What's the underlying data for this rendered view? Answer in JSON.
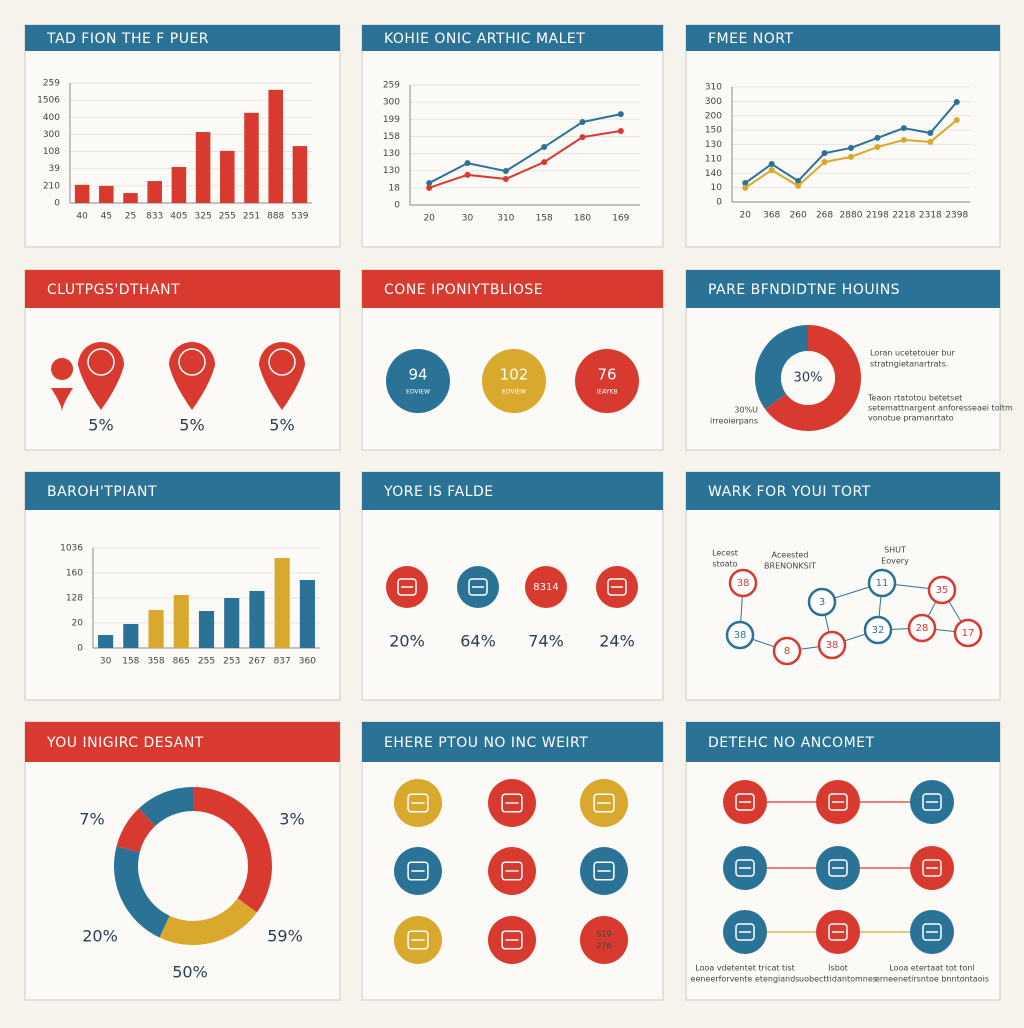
{
  "panels": [
    {
      "title": "TAD FION THE F PUER",
      "type": "bar",
      "header_color": "#2a7396",
      "color": "#d93a2f",
      "categories": [
        "40",
        "45",
        "25",
        "833",
        "405",
        "325",
        "255",
        "251",
        "888",
        "539"
      ],
      "values": [
        53,
        50,
        29,
        64,
        105,
        207,
        152,
        263,
        330,
        166
      ],
      "ylim": [
        0,
        350
      ],
      "yticks": [
        0,
        {
          "value": 50,
          "label": "210"
        },
        {
          "value": 100,
          "label": "39"
        },
        {
          "value": 150,
          "label": "108"
        },
        {
          "value": 200,
          "label": "300"
        },
        {
          "value": 250,
          "label": "400"
        },
        {
          "value": 300,
          "label": "1506"
        },
        {
          "value": 350,
          "label": "259"
        }
      ]
    },
    {
      "title": "KOHIE ONIC ARTHIC MALET",
      "type": "line",
      "header_color": "#2a7396",
      "categories": [
        "20",
        "30",
        "310",
        "158",
        "180",
        "169"
      ],
      "series": [
        {
          "color": "#2a7396",
          "values": [
            64,
            122,
            99,
            169,
            242,
            265
          ]
        },
        {
          "color": "#d93a2f",
          "values": [
            50,
            88,
            76,
            125,
            198,
            216
          ]
        }
      ],
      "ylim": [
        0,
        350
      ],
      "yticks": [
        0,
        {
          "value": 50,
          "label": "18"
        },
        {
          "value": 100,
          "label": "130"
        },
        {
          "value": 150,
          "label": "130"
        },
        {
          "value": 200,
          "label": "158"
        },
        {
          "value": 250,
          "label": "199"
        },
        {
          "value": 300,
          "label": "300"
        },
        {
          "value": 350,
          "label": "259"
        }
      ]
    },
    {
      "title": "FMEE NORT",
      "type": "line",
      "header_color": "#2a7396",
      "categories": [
        "20",
        "368",
        "260",
        "268",
        "2880",
        "2198",
        "2218",
        "2318",
        "2398"
      ],
      "series": [
        {
          "color": "#2a7396",
          "values": [
            66,
            132,
            73,
            170,
            188,
            223,
            257,
            240,
            348
          ]
        },
        {
          "color": "#d9a92e",
          "values": [
            49,
            111,
            56,
            139,
            157,
            191,
            216,
            209,
            285
          ]
        }
      ],
      "ylim": [
        0,
        400
      ],
      "yticks": [
        0,
        {
          "value": 50,
          "label": "10"
        },
        {
          "value": 100,
          "label": "140"
        },
        {
          "value": 150,
          "label": "110"
        },
        {
          "value": 200,
          "label": "130"
        },
        {
          "value": 250,
          "label": "150"
        },
        {
          "value": 300,
          "label": "200"
        },
        {
          "value": 350,
          "label": "300"
        },
        {
          "value": 400,
          "label": "310"
        }
      ]
    },
    {
      "title": "CLUTPGS'DTHANT",
      "type": "pins",
      "header_color": "#d93a2f",
      "color": "#d93a2f",
      "labels": [
        "5%",
        "5%",
        "5%"
      ]
    },
    {
      "title": "CONE IPONIYTBLIOSE",
      "type": "stats",
      "header_color": "#d93a2f",
      "items": [
        {
          "value": "94",
          "caption": "EOVIEW",
          "color": "#2a7396"
        },
        {
          "value": "102",
          "caption": "EOVIEW",
          "color": "#d9a92e"
        },
        {
          "value": "76",
          "caption": "IEAYKB",
          "color": "#d93a2f"
        }
      ]
    },
    {
      "title": "PARE BFNDIDTNE HOUINS",
      "type": "donut",
      "header_color": "#2a7396",
      "center": "30%",
      "segments": [
        {
          "value": 65,
          "color": "#d93a2f"
        },
        {
          "value": 35,
          "color": "#2a7396"
        }
      ],
      "notes": [
        [
          "Loran ucetetouer bur",
          "stratngietanartrats."
        ],
        [
          "Teaon rtatotou betetset",
          "setemattnargent anforesseaei toltm",
          "vonotue pramanrtato"
        ],
        [
          "30%U",
          "irreoierpans"
        ]
      ]
    },
    {
      "title": "BAROH'TPIANT",
      "type": "bar",
      "header_color": "#2a7396",
      "categories": [
        "30",
        "158",
        "358",
        "865",
        "255",
        "253",
        "267",
        "837",
        "360"
      ],
      "values": [
        13,
        24,
        38,
        53,
        37,
        50,
        57,
        90,
        68
      ],
      "colors": [
        "#2a7396",
        "#2a7396",
        "#d9a92e",
        "#d9a92e",
        "#2a7396",
        "#2a7396",
        "#2a7396",
        "#d9a92e",
        "#2a7396"
      ],
      "ylim": [
        0,
        100
      ],
      "yticks": [
        0,
        {
          "value": 25,
          "label": "20"
        },
        {
          "value": 50,
          "label": "128"
        },
        {
          "value": 75,
          "label": "160"
        },
        {
          "value": 100,
          "label": "1036"
        }
      ]
    },
    {
      "title": "YORE IS FALDE",
      "type": "icons-row",
      "header_color": "#2a7396",
      "items": [
        {
          "color": "#d93a2f",
          "label": "20%"
        },
        {
          "color": "#2a7396",
          "label": "64%"
        },
        {
          "color": "#d93a2f",
          "label": "74%",
          "inner": "8314"
        },
        {
          "color": "#d93a2f",
          "label": "24%"
        }
      ]
    },
    {
      "title": "WARK FOR YOUI TORT",
      "type": "network",
      "header_color": "#2a7396",
      "nodes": [
        {
          "label": "38",
          "color": "#d93a2f"
        },
        {
          "label": "3",
          "color": "#2a7396"
        },
        {
          "label": "11",
          "color": "#2a7396"
        },
        {
          "label": "35",
          "color": "#d93a2f"
        },
        {
          "label": "38",
          "color": "#2a7396"
        },
        {
          "label": "8",
          "color": "#d93a2f"
        },
        {
          "label": "38",
          "color": "#d93a2f"
        },
        {
          "label": "32",
          "color": "#2a7396"
        },
        {
          "label": "28",
          "color": "#d93a2f"
        },
        {
          "label": "17",
          "color": "#d93a2f"
        }
      ],
      "notes": [
        [
          "Lecest",
          "stoato"
        ],
        [
          "Aceested",
          "BRENONKSIT"
        ],
        [
          "SHUT",
          "Eovery"
        ]
      ]
    },
    {
      "title": "YOU INIGIRC DESANT",
      "type": "donut",
      "header_color": "#d93a2f",
      "segments": [
        {
          "value": 35,
          "color": "#d93a2f"
        },
        {
          "value": 22,
          "color": "#d9a92e"
        },
        {
          "value": 22,
          "color": "#2a7396"
        },
        {
          "value": 9,
          "color": "#d93a2f"
        },
        {
          "value": 12,
          "color": "#2a7396"
        }
      ],
      "labels": [
        "7%",
        "3%",
        "20%",
        "59%",
        "50%"
      ]
    },
    {
      "title": "EHERE PTOU NO INC WEIRT",
      "type": "icon-grid",
      "header_color": "#2a7396",
      "items": [
        {
          "color": "#d9a92e"
        },
        {
          "color": "#d93a2f"
        },
        {
          "color": "#d9a92e"
        },
        {
          "color": "#2a7396"
        },
        {
          "color": "#d93a2f"
        },
        {
          "color": "#2a7396"
        },
        {
          "color": "#d9a92e"
        },
        {
          "color": "#d93a2f"
        },
        {
          "color": "#d93a2f",
          "inner": [
            "S19",
            "276"
          ]
        }
      ]
    },
    {
      "title": "DETEHC NO ANCOMET",
      "type": "flow",
      "header_color": "#2a7396",
      "items": [
        {
          "color": "#d93a2f"
        },
        {
          "color": "#d93a2f"
        },
        {
          "color": "#2a7396"
        },
        {
          "color": "#2a7396"
        },
        {
          "color": "#2a7396"
        },
        {
          "color": "#d93a2f"
        },
        {
          "color": "#2a7396"
        },
        {
          "color": "#d93a2f"
        },
        {
          "color": "#2a7396"
        }
      ],
      "notes": [
        [
          "Looa vdetentet tricat tist",
          "eeneerforvente etengiands"
        ],
        [
          "Isbot",
          "uobecttidantomnes"
        ],
        [
          "Looa etertaat tot tonl",
          "erneenetirsntoe bnntontaois"
        ]
      ]
    }
  ]
}
